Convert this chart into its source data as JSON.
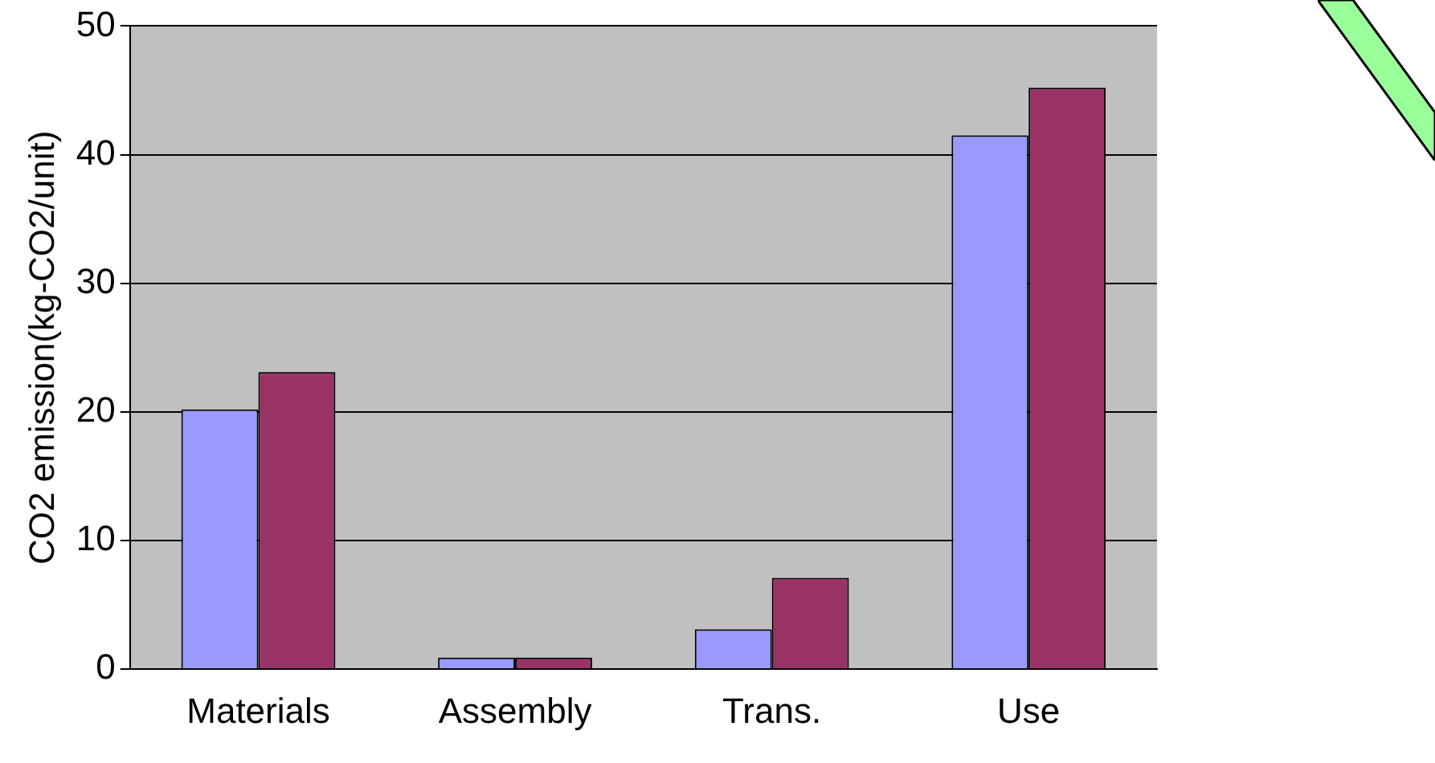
{
  "chart_data": {
    "type": "bar",
    "ylabel": "CO2 emission(kg-CO2/unit)",
    "categories": [
      "Materials",
      "Assembly",
      "Trans.",
      "Use"
    ],
    "series": [
      {
        "color": "#9999ff",
        "values": [
          20.2,
          0.9,
          3.1,
          41.5
        ]
      },
      {
        "color": "#993366",
        "values": [
          23.1,
          0.9,
          7.1,
          45.2
        ]
      }
    ],
    "ylim": [
      0,
      50
    ],
    "yticks": [
      0,
      10,
      20,
      30,
      40,
      50
    ],
    "grid": "y"
  }
}
